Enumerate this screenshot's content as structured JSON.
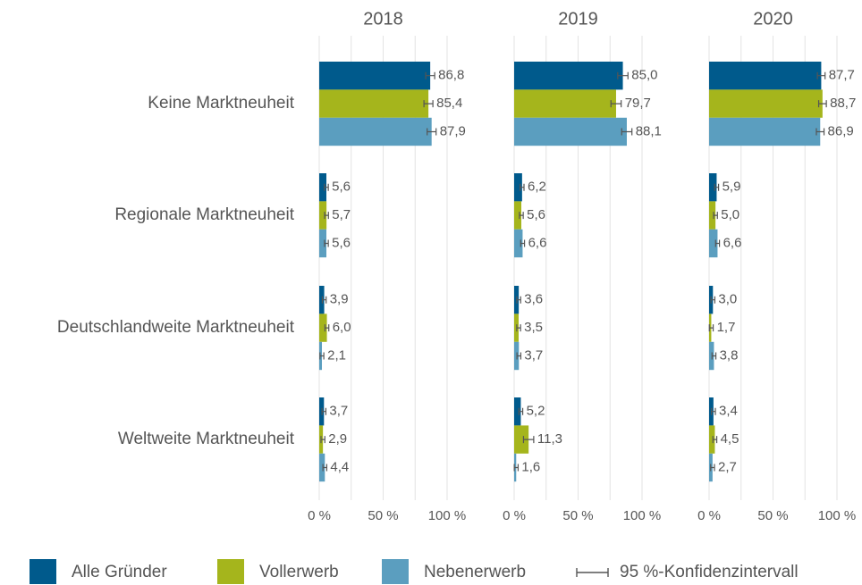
{
  "chart_data": [
    {
      "type": "bar",
      "title": "2018",
      "categories": [
        "Keine Marktneuheit",
        "Regionale Marktneuheit",
        "Deutschlandweite Marktneuheit",
        "Weltweite Marktneuheit"
      ],
      "error_label": "95 %-Konfidenzintervall",
      "series": [
        {
          "name": "Alle Gründer",
          "color": "#005a8c",
          "values": [
            86.8,
            5.6,
            3.9,
            3.7
          ],
          "errors": [
            3.5,
            1.5,
            1.5,
            1.5
          ],
          "value_labels": [
            "86,8",
            "5,6",
            "3,9",
            "3,7"
          ]
        },
        {
          "name": "Vollerwerb",
          "color": "#a5b51c",
          "values": [
            85.4,
            5.7,
            6.0,
            2.9
          ],
          "errors": [
            3.5,
            1.5,
            1.5,
            1.5
          ],
          "value_labels": [
            "85,4",
            "5,7",
            "6,0",
            "2,9"
          ]
        },
        {
          "name": "Nebenerwerb",
          "color": "#5b9ebf",
          "values": [
            87.9,
            5.6,
            2.1,
            4.4
          ],
          "errors": [
            3.5,
            1.5,
            1.5,
            1.5
          ],
          "value_labels": [
            "87,9",
            "5,6",
            "2,1",
            "4,4"
          ]
        }
      ],
      "xlim": [
        0,
        100
      ],
      "xgrid": [
        0,
        25,
        50,
        75,
        100
      ],
      "xticks": [
        {
          "value": 0,
          "label": "0 %"
        },
        {
          "value": 50,
          "label": "50 %"
        },
        {
          "value": 100,
          "label": "100 %"
        }
      ]
    },
    {
      "type": "bar",
      "title": "2019",
      "series": [
        {
          "values": [
            85.0,
            6.2,
            3.6,
            5.2
          ],
          "errors": [
            4,
            1.5,
            1.5,
            1.5
          ],
          "value_labels": [
            "85,0",
            "6,2",
            "3,6",
            "5,2"
          ]
        },
        {
          "values": [
            79.7,
            5.6,
            3.5,
            11.3
          ],
          "errors": [
            4,
            1.5,
            1.5,
            4
          ],
          "value_labels": [
            "79,7",
            "5,6",
            "3,5",
            "11,3"
          ]
        },
        {
          "values": [
            88.1,
            6.6,
            3.7,
            1.6
          ],
          "errors": [
            4,
            1.5,
            1.5,
            1.5
          ],
          "value_labels": [
            "88,1",
            "6,6",
            "3,7",
            "1,6"
          ]
        }
      ],
      "xlim": [
        0,
        100
      ],
      "xgrid": [
        0,
        25,
        50,
        75,
        100
      ],
      "xticks": [
        {
          "value": 0,
          "label": "0 %"
        },
        {
          "value": 50,
          "label": "50 %"
        },
        {
          "value": 100,
          "label": "100 %"
        }
      ]
    },
    {
      "type": "bar",
      "title": "2020",
      "series": [
        {
          "values": [
            87.7,
            5.9,
            3.0,
            3.4
          ],
          "errors": [
            3,
            1.5,
            1.5,
            1.5
          ],
          "value_labels": [
            "87,7",
            "5,9",
            "3,0",
            "3,4"
          ]
        },
        {
          "values": [
            88.7,
            5.0,
            1.7,
            4.5
          ],
          "errors": [
            3,
            1.5,
            1.5,
            1.5
          ],
          "value_labels": [
            "88,7",
            "5,0",
            "1,7",
            "4,5"
          ]
        },
        {
          "values": [
            86.9,
            6.6,
            3.8,
            2.7
          ],
          "errors": [
            3,
            1.5,
            1.5,
            1.5
          ],
          "value_labels": [
            "86,9",
            "6,6",
            "3,8",
            "2,7"
          ]
        }
      ],
      "xlim": [
        0,
        100
      ],
      "xgrid": [
        0,
        25,
        50,
        75,
        100
      ],
      "xticks": [
        {
          "value": 0,
          "label": "0 %"
        },
        {
          "value": 50,
          "label": "50 %"
        },
        {
          "value": 100,
          "label": "100 %"
        }
      ]
    }
  ]
}
